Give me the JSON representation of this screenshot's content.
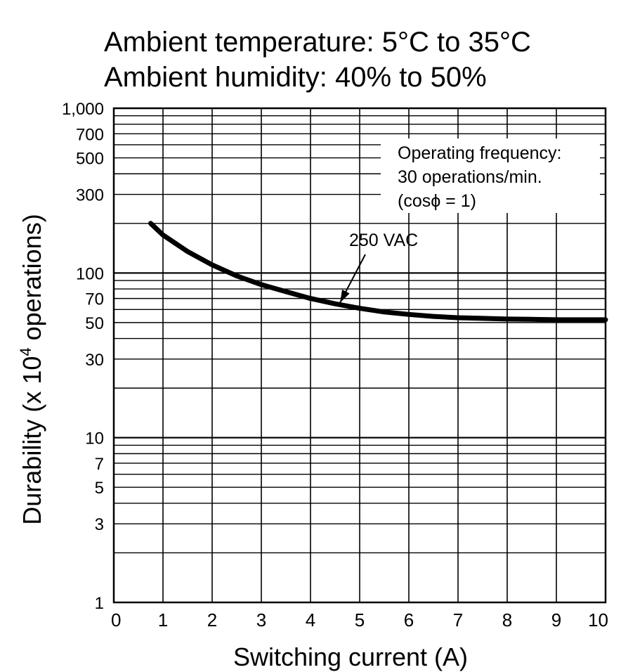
{
  "title_lines": [
    "Ambient temperature: 5°C to 35°C",
    "Ambient humidity: 40% to 50%"
  ],
  "note_lines": [
    "Operating frequency:",
    "30 operations/min.",
    "(cosϕ = 1)"
  ],
  "chart_data": {
    "type": "line",
    "title": "Ambient temperature: 5°C to 35°C / Ambient humidity: 40% to 50%",
    "xlabel": "Switching current (A)",
    "ylabel": "Durability  (x 10⁴ operations)",
    "ylabel_parts": {
      "pre": "Durability  (x 10",
      "sup": "4",
      "post": " operations)"
    },
    "xlim": [
      0,
      10
    ],
    "ylim": [
      1,
      1000
    ],
    "yscale": "log",
    "grid": true,
    "x_ticks": [
      0,
      1,
      2,
      3,
      4,
      5,
      6,
      7,
      8,
      9,
      10
    ],
    "x_tick_labels": [
      "0",
      "1",
      "2",
      "3",
      "4",
      "5",
      "6",
      "7",
      "8",
      "9",
      "10"
    ],
    "y_ticks": [
      1,
      3,
      5,
      7,
      10,
      30,
      50,
      70,
      100,
      300,
      500,
      700,
      1000
    ],
    "y_tick_labels": [
      "1",
      "3",
      "5",
      "7",
      "10",
      "30",
      "50",
      "70",
      "100",
      "300",
      "500",
      "700",
      "1,000"
    ],
    "series": [
      {
        "name": "250 VAC",
        "x": [
          0.75,
          1.0,
          1.5,
          2.0,
          2.5,
          3.0,
          3.5,
          4.0,
          4.5,
          5.0,
          5.5,
          6.0,
          6.5,
          7.0,
          7.5,
          8.0,
          8.5,
          9.0,
          9.5,
          10.0
        ],
        "y": [
          200,
          170,
          135,
          112,
          96,
          85,
          77,
          70,
          65,
          61,
          58,
          56,
          54.5,
          53.5,
          53,
          52.5,
          52.3,
          52,
          52,
          52
        ]
      }
    ],
    "annotations": [
      {
        "text": "250 VAC",
        "points_to": {
          "x": 4.6,
          "y": 66
        }
      }
    ]
  }
}
